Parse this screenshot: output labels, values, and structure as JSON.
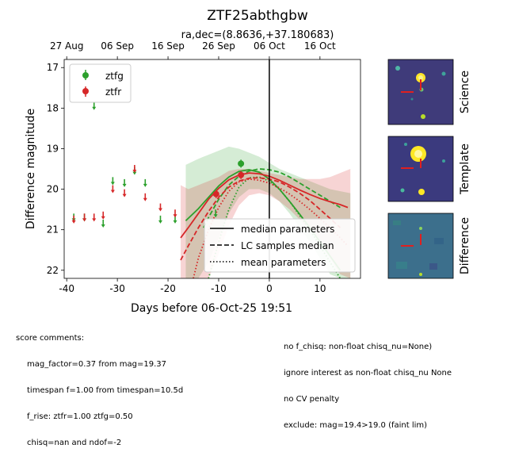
{
  "chart_data": {
    "type": "scatter",
    "title": "ZTF25abthgbw",
    "subtitle": "ra,dec=(8.8636,+37.180683)",
    "xlabel": "Days before 06-Oct-25 19:51",
    "ylabel": "Difference magnitude",
    "xlim": [
      -40.5,
      18
    ],
    "ylim": [
      22.2,
      16.8
    ],
    "y_inverted": true,
    "x_ticks": [
      -40,
      -30,
      -20,
      -10,
      0,
      10
    ],
    "y_ticks": [
      17,
      18,
      19,
      20,
      21,
      22
    ],
    "top_ticks": [
      {
        "x": -40.0,
        "label": "27 Aug"
      },
      {
        "x": -30.0,
        "label": "06 Sep"
      },
      {
        "x": -20.0,
        "label": "16 Sep"
      },
      {
        "x": -10.0,
        "label": "26 Sep"
      },
      {
        "x": 0.0,
        "label": "06 Oct"
      },
      {
        "x": 10.0,
        "label": "16 Oct"
      }
    ],
    "reference_line_x": 0,
    "colors": {
      "ztfg": "#2ca02c",
      "ztfr": "#d62728"
    },
    "legend": {
      "position": "upper-left",
      "entries": [
        "ztfg",
        "ztfr"
      ]
    },
    "series": [
      {
        "name": "ztfg",
        "detections": [
          {
            "x": -5.6,
            "y": 19.37
          }
        ],
        "upper_limits": [
          {
            "x": -38.6,
            "y": 20.7
          },
          {
            "x": -36.5,
            "y": 20.7
          },
          {
            "x": -34.6,
            "y": 17.95
          },
          {
            "x": -32.8,
            "y": 20.85
          },
          {
            "x": -30.9,
            "y": 19.8
          },
          {
            "x": -28.6,
            "y": 19.85
          },
          {
            "x": -26.6,
            "y": 19.55
          },
          {
            "x": -24.5,
            "y": 19.85
          },
          {
            "x": -21.5,
            "y": 20.75
          },
          {
            "x": -18.6,
            "y": 20.75
          },
          {
            "x": -10.6,
            "y": 20.6
          }
        ]
      },
      {
        "name": "ztfr",
        "detections": [
          {
            "x": -10.5,
            "y": 20.12
          },
          {
            "x": -5.6,
            "y": 19.65
          }
        ],
        "upper_limits": [
          {
            "x": -38.6,
            "y": 20.75
          },
          {
            "x": -36.5,
            "y": 20.7
          },
          {
            "x": -34.6,
            "y": 20.7
          },
          {
            "x": -32.8,
            "y": 20.65
          },
          {
            "x": -30.9,
            "y": 20.0
          },
          {
            "x": -28.6,
            "y": 20.1
          },
          {
            "x": -26.6,
            "y": 19.5
          },
          {
            "x": -24.5,
            "y": 20.2
          },
          {
            "x": -21.5,
            "y": 20.45
          },
          {
            "x": -18.6,
            "y": 20.6
          }
        ]
      }
    ],
    "fits": [
      {
        "series": "ztfg",
        "style": "median parameters",
        "x": [
          -16.5,
          -14,
          -12,
          -10,
          -8,
          -6,
          -4,
          -2,
          0,
          2,
          4,
          6,
          8,
          10,
          12,
          14
        ],
        "y": [
          20.78,
          20.48,
          20.2,
          19.92,
          19.7,
          19.56,
          19.52,
          19.58,
          19.75,
          20.0,
          20.3,
          20.62,
          20.95,
          21.3,
          21.65,
          22.0
        ]
      },
      {
        "series": "ztfg",
        "style": "LC samples median",
        "x": [
          -13,
          -12,
          -10,
          -8,
          -6,
          -4,
          -2,
          0,
          2,
          4,
          6,
          8,
          10,
          12,
          14
        ],
        "y": [
          20.95,
          20.7,
          20.25,
          19.9,
          19.68,
          19.55,
          19.5,
          19.52,
          19.58,
          19.7,
          19.85,
          20.0,
          20.15,
          20.3,
          20.45
        ]
      },
      {
        "series": "ztfg",
        "style": "mean parameters",
        "x": [
          -12,
          -10,
          -8,
          -6,
          -4,
          -2,
          0,
          2,
          4,
          6,
          8,
          10,
          12,
          14
        ],
        "y": [
          22.2,
          21.3,
          20.5,
          19.95,
          19.72,
          19.7,
          19.8,
          20.0,
          20.3,
          20.65,
          21.0,
          21.4,
          21.8,
          22.2
        ]
      },
      {
        "series": "ztfr",
        "style": "median parameters",
        "x": [
          -17.5,
          -16,
          -14,
          -12,
          -10,
          -8,
          -6,
          -4,
          -2,
          0,
          2,
          4,
          6,
          8,
          10,
          12,
          14,
          15.5
        ],
        "y": [
          21.2,
          20.95,
          20.6,
          20.25,
          19.98,
          19.77,
          19.65,
          19.6,
          19.62,
          19.68,
          19.78,
          19.9,
          20.02,
          20.13,
          20.23,
          20.31,
          20.38,
          20.45
        ]
      },
      {
        "series": "ztfr",
        "style": "LC samples median",
        "x": [
          -17.5,
          -16,
          -14,
          -12,
          -10,
          -8,
          -6,
          -4,
          -2,
          0,
          2,
          4,
          6,
          8,
          10,
          12,
          14
        ],
        "y": [
          21.75,
          21.4,
          20.95,
          20.55,
          20.2,
          19.95,
          19.8,
          19.73,
          19.72,
          19.75,
          19.82,
          19.95,
          20.1,
          20.28,
          20.5,
          20.72,
          20.95
        ]
      },
      {
        "series": "ztfr",
        "style": "mean parameters",
        "x": [
          -15,
          -14,
          -12,
          -10,
          -8,
          -6,
          -4,
          -2,
          0,
          2,
          4,
          6,
          8,
          10,
          12,
          14,
          15.5
        ],
        "y": [
          22.2,
          21.7,
          21.0,
          20.45,
          20.05,
          19.82,
          19.75,
          19.78,
          19.85,
          19.97,
          20.12,
          20.3,
          20.5,
          20.72,
          20.95,
          21.2,
          21.4
        ]
      }
    ],
    "bands": [
      {
        "series": "ztfg",
        "x": [
          -16.5,
          -14,
          -12,
          -10,
          -8,
          -6,
          -4,
          -2,
          0,
          2,
          4,
          6,
          8,
          10,
          12,
          14,
          16
        ],
        "y_low": [
          19.4,
          19.25,
          19.15,
          19.05,
          18.95,
          19.0,
          19.1,
          19.2,
          19.35,
          19.5,
          19.6,
          19.7,
          19.8,
          19.9,
          20.0,
          20.05,
          20.1
        ],
        "y_high": [
          22.2,
          22.2,
          21.8,
          21.2,
          20.6,
          20.2,
          20.0,
          20.0,
          20.1,
          20.3,
          20.6,
          20.95,
          21.3,
          21.7,
          22.1,
          22.2,
          22.2
        ]
      },
      {
        "series": "ztfr",
        "x": [
          -17.5,
          -16,
          -14,
          -12,
          -10,
          -8,
          -6,
          -4,
          -2,
          0,
          2,
          4,
          6,
          8,
          10,
          12,
          14,
          16
        ],
        "y_low": [
          19.9,
          20.0,
          19.9,
          19.8,
          19.7,
          19.55,
          19.5,
          19.5,
          19.55,
          19.6,
          19.65,
          19.7,
          19.75,
          19.75,
          19.75,
          19.7,
          19.6,
          19.5
        ],
        "y_high": [
          22.2,
          22.2,
          22.2,
          22.2,
          21.6,
          20.9,
          20.4,
          20.15,
          20.1,
          20.15,
          20.3,
          20.5,
          20.75,
          21.0,
          21.3,
          21.7,
          22.1,
          22.2
        ]
      }
    ],
    "fit_legend": [
      "median parameters",
      "LC samples median",
      "mean parameters"
    ]
  },
  "cutouts": {
    "labels": [
      "Science",
      "Template",
      "Difference"
    ]
  },
  "comments": {
    "heading": "score comments:",
    "left": [
      "mag_factor=0.37 from mag=19.37",
      "timespan f=1.00 from timespan=10.5d",
      "f_rise: ztfr=1.00 ztfg=0.50",
      "chisq=nan and ndof=-2"
    ],
    "right": [
      "no f_chisq: non-float chisq_nu=None)",
      "ignore interest as non-float chisq_nu None",
      "no CV penalty",
      "exclude: mag=19.4>19.0 (faint lim)"
    ]
  }
}
